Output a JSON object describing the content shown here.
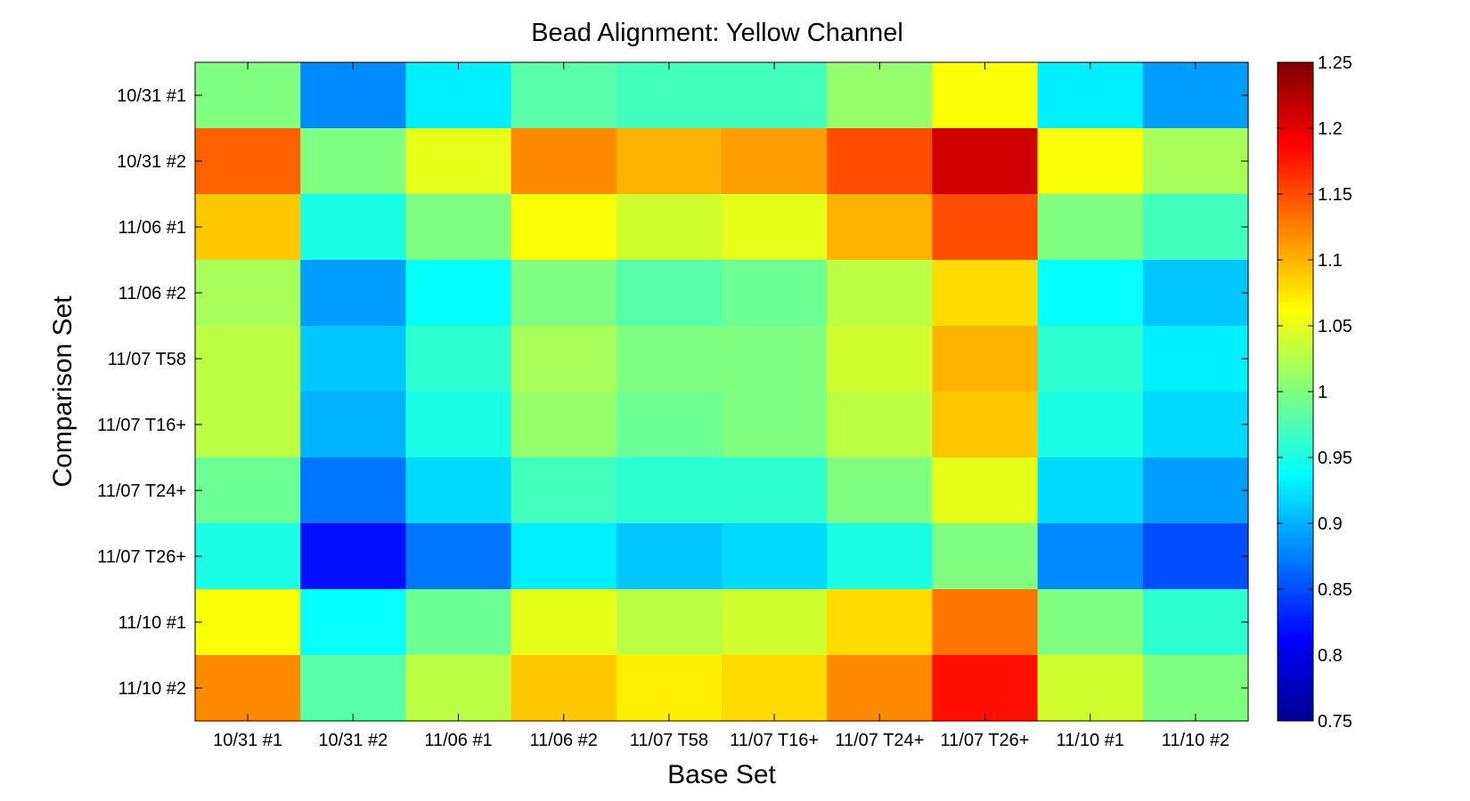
{
  "chart_data": {
    "type": "heatmap",
    "title": "Bead Alignment: Yellow Channel",
    "xlabel": "Base Set",
    "ylabel": "Comparison Set",
    "x_categories": [
      "10/31 #1",
      "10/31 #2",
      "11/06 #1",
      "11/06 #2",
      "11/07 T58",
      "11/07 T16+",
      "11/07 T24+",
      "11/07 T26+",
      "11/10 #1",
      "11/10 #2"
    ],
    "y_categories": [
      "10/31 #1",
      "10/31 #2",
      "11/06 #1",
      "11/06 #2",
      "11/07 T58",
      "11/07 T16+",
      "11/07 T24+",
      "11/07 T26+",
      "11/10 #1",
      "11/10 #2"
    ],
    "values": [
      [
        1.0,
        0.88,
        0.93,
        0.98,
        0.97,
        0.97,
        1.01,
        1.06,
        0.93,
        0.89
      ],
      [
        1.14,
        1.0,
        1.05,
        1.12,
        1.1,
        1.11,
        1.15,
        1.21,
        1.06,
        1.02
      ],
      [
        1.09,
        0.95,
        1.0,
        1.06,
        1.04,
        1.05,
        1.1,
        1.15,
        1.0,
        0.97
      ],
      [
        1.02,
        0.89,
        0.94,
        1.0,
        0.98,
        0.99,
        1.03,
        1.08,
        0.94,
        0.91
      ],
      [
        1.03,
        0.91,
        0.96,
        1.02,
        1.0,
        1.0,
        1.04,
        1.1,
        0.96,
        0.93
      ],
      [
        1.03,
        0.9,
        0.95,
        1.01,
        0.99,
        1.0,
        1.03,
        1.09,
        0.95,
        0.92
      ],
      [
        0.99,
        0.87,
        0.92,
        0.97,
        0.96,
        0.96,
        1.0,
        1.05,
        0.92,
        0.89
      ],
      [
        0.95,
        0.82,
        0.87,
        0.93,
        0.91,
        0.92,
        0.95,
        1.0,
        0.88,
        0.85
      ],
      [
        1.06,
        0.94,
        0.99,
        1.05,
        1.03,
        1.04,
        1.08,
        1.13,
        1.0,
        0.96
      ],
      [
        1.12,
        0.98,
        1.03,
        1.09,
        1.07,
        1.08,
        1.12,
        1.18,
        1.04,
        1.0
      ]
    ],
    "colormap": "jet",
    "clim": [
      0.75,
      1.25
    ],
    "colorbar_ticks": [
      "1.25",
      "1.2",
      "1.15",
      "1.1",
      "1.05",
      "1",
      "0.95",
      "0.9",
      "0.85",
      "0.8",
      "0.75"
    ],
    "colorbar_position": "right",
    "grid": false
  }
}
